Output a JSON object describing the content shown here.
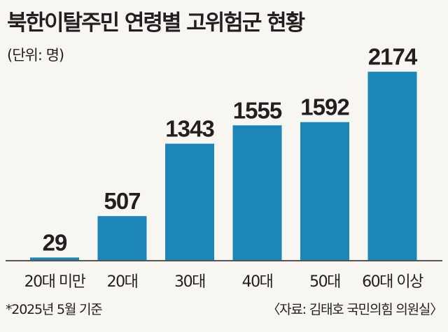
{
  "chart_data": {
    "type": "bar",
    "title": "북한이탈주민 연령별 고위험군 현황",
    "unit_label": "(단위: 명)",
    "categories": [
      "20대 미만",
      "20대",
      "30대",
      "40대",
      "50대",
      "60대 이상"
    ],
    "values": [
      29,
      507,
      1343,
      1555,
      1592,
      2174
    ],
    "value_labels": [
      "29",
      "507",
      "1343",
      "1555",
      "1592",
      "2174"
    ],
    "ylim": [
      0,
      2300
    ],
    "grid": false,
    "bar_color": "#1a87b8",
    "footnote": "*2025년 5월 기준",
    "source": "〈자료: 김태호 국민의힘 의원실〉"
  }
}
